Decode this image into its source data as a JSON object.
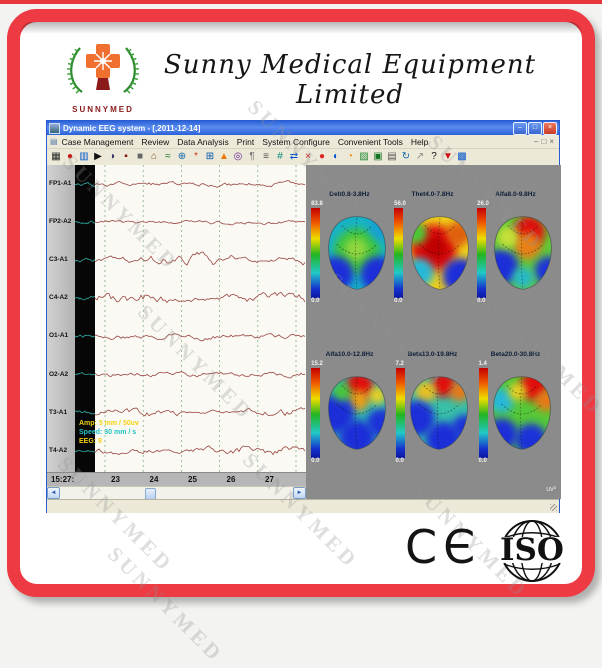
{
  "page": {
    "watermark": "SUNNYMED"
  },
  "header": {
    "company_name": "Sunny Medical Equipment Limited",
    "logo_caption": "SUNNYMED"
  },
  "window": {
    "title": "Dynamic EEG system - [,2011-12-14]",
    "controls": {
      "minimize": "–",
      "maximize": "□",
      "close": "×"
    },
    "mdi_controls": {
      "minimize": "–",
      "restore": "□",
      "close": "×"
    },
    "menu_icon": "▤",
    "menu_items": [
      "Case Management",
      "Review",
      "Data Analysis",
      "Print",
      "System Configure",
      "Convenient Tools",
      "Help"
    ],
    "toolbar_icons": [
      {
        "name": "montage-grid-icon",
        "glyph": "▦",
        "color": "#222222"
      },
      {
        "name": "record-icon",
        "glyph": "●",
        "color": "#cc1111"
      },
      {
        "name": "report-icon",
        "glyph": "▥",
        "color": "#0055cc"
      },
      {
        "name": "play-icon",
        "glyph": "▶",
        "color": "#111111"
      },
      {
        "name": "contrast-icon",
        "glyph": "◑",
        "color": "#333366"
      },
      {
        "name": "marker-icon",
        "glyph": "▪",
        "color": "#881111"
      },
      {
        "name": "stop-icon",
        "glyph": "■",
        "color": "#666666"
      },
      {
        "name": "home-icon",
        "glyph": "⌂",
        "color": "#885522"
      },
      {
        "name": "wave-icon",
        "glyph": "≈",
        "color": "#117722"
      },
      {
        "name": "globe-icon",
        "glyph": "⊕",
        "color": "#1166aa"
      },
      {
        "name": "event-star-icon",
        "glyph": "*",
        "color": "#cc3311"
      },
      {
        "name": "zoom-grid-icon",
        "glyph": "⊞",
        "color": "#0055aa"
      },
      {
        "name": "alarm-icon",
        "glyph": "▲",
        "color": "#ee7700"
      },
      {
        "name": "target-icon",
        "glyph": "◎",
        "color": "#662299"
      },
      {
        "name": "paragraph-icon",
        "glyph": "¶",
        "color": "#777777"
      },
      {
        "name": "list-icon",
        "glyph": "≡",
        "color": "#555555"
      },
      {
        "name": "numeric-icon",
        "glyph": "#",
        "color": "#008877"
      },
      {
        "name": "swap-icon",
        "glyph": "⇄",
        "color": "#0055cc"
      },
      {
        "name": "delete-icon",
        "glyph": "×",
        "color": "#cc1111"
      },
      {
        "name": "red-ball-icon",
        "glyph": "●",
        "color": "#dd2222"
      },
      {
        "name": "half-ball-icon",
        "glyph": "◐",
        "color": "#0055cc"
      },
      {
        "name": "clock-icon",
        "glyph": "◔",
        "color": "#ee8800"
      },
      {
        "name": "pattern-icon",
        "glyph": "▨",
        "color": "#228833"
      },
      {
        "name": "save-icon",
        "glyph": "▣",
        "color": "#117722"
      },
      {
        "name": "print-icon",
        "glyph": "▤",
        "color": "#555555"
      },
      {
        "name": "refresh-icon",
        "glyph": "↻",
        "color": "#1166aa"
      },
      {
        "name": "export-icon",
        "glyph": "↗",
        "color": "#888888"
      },
      {
        "name": "help-icon",
        "glyph": "?",
        "color": "#111111"
      },
      {
        "name": "dropdown-icon",
        "glyph": "▼",
        "color": "#cc1111"
      },
      {
        "name": "table-icon",
        "glyph": "▩",
        "color": "#0055cc"
      }
    ],
    "eeg": {
      "channels": [
        "FP1-A1",
        "FP2-A2",
        "C3-A1",
        "C4-A2",
        "O1-A1",
        "O2-A2",
        "T3-A1",
        "T4-A2"
      ],
      "overlay": [
        {
          "text": "Amp: 5 mm / 50uv",
          "color": "#f2d313"
        },
        {
          "text": "Speed: 30 mm / s",
          "color": "#22c4c4"
        },
        {
          "text": "EEG: 8",
          "color": "#f2d313"
        }
      ],
      "time_prefix": "15:27:",
      "time_ticks": [
        "23",
        "24",
        "25",
        "26",
        "27"
      ],
      "scrollbar": {
        "left_arrow": "◄",
        "right_arrow": "►"
      }
    },
    "topo": {
      "unit": "uv²",
      "maps": [
        {
          "label": "Delt0.8-3.8Hz",
          "max": "83.8",
          "min": "0.0"
        },
        {
          "label": "Thet4.0-7.8Hz",
          "max": "56.0",
          "min": "0.0"
        },
        {
          "label": "Alfa8.0-9.8Hz",
          "max": "26.0",
          "min": "0.0"
        },
        {
          "label": "Alfa10.0-12.8Hz",
          "max": "15.2",
          "min": "0.0"
        },
        {
          "label": "Beta13.0-19.8Hz",
          "max": "7.2",
          "min": "0.0"
        },
        {
          "label": "Beta20.0-30.8Hz",
          "max": "1.4",
          "min": "0.0"
        }
      ]
    }
  },
  "certs": {
    "ce": "CЄ",
    "iso": "ISO"
  }
}
